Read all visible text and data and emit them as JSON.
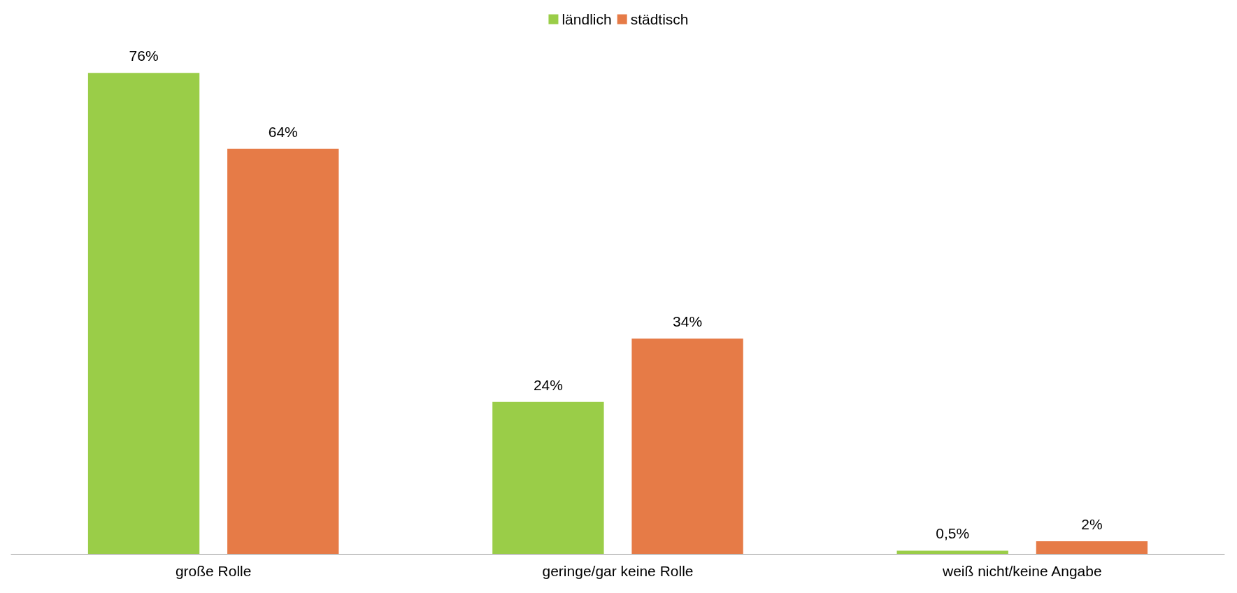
{
  "chart_data": {
    "type": "bar",
    "categories": [
      "große Rolle",
      "geringe/gar keine Rolle",
      "weiß nicht/keine Angabe"
    ],
    "series": [
      {
        "name": "ländlich",
        "color": "#9acd48",
        "values": [
          76,
          24,
          0.5
        ],
        "value_labels": [
          "76%",
          "24%",
          "0,5%"
        ]
      },
      {
        "name": "städtisch",
        "color": "#e67b47",
        "values": [
          64,
          34,
          2
        ],
        "value_labels": [
          "64%",
          "34%",
          "2%"
        ]
      }
    ],
    "legend": "top",
    "tick_labels": "x"
  }
}
